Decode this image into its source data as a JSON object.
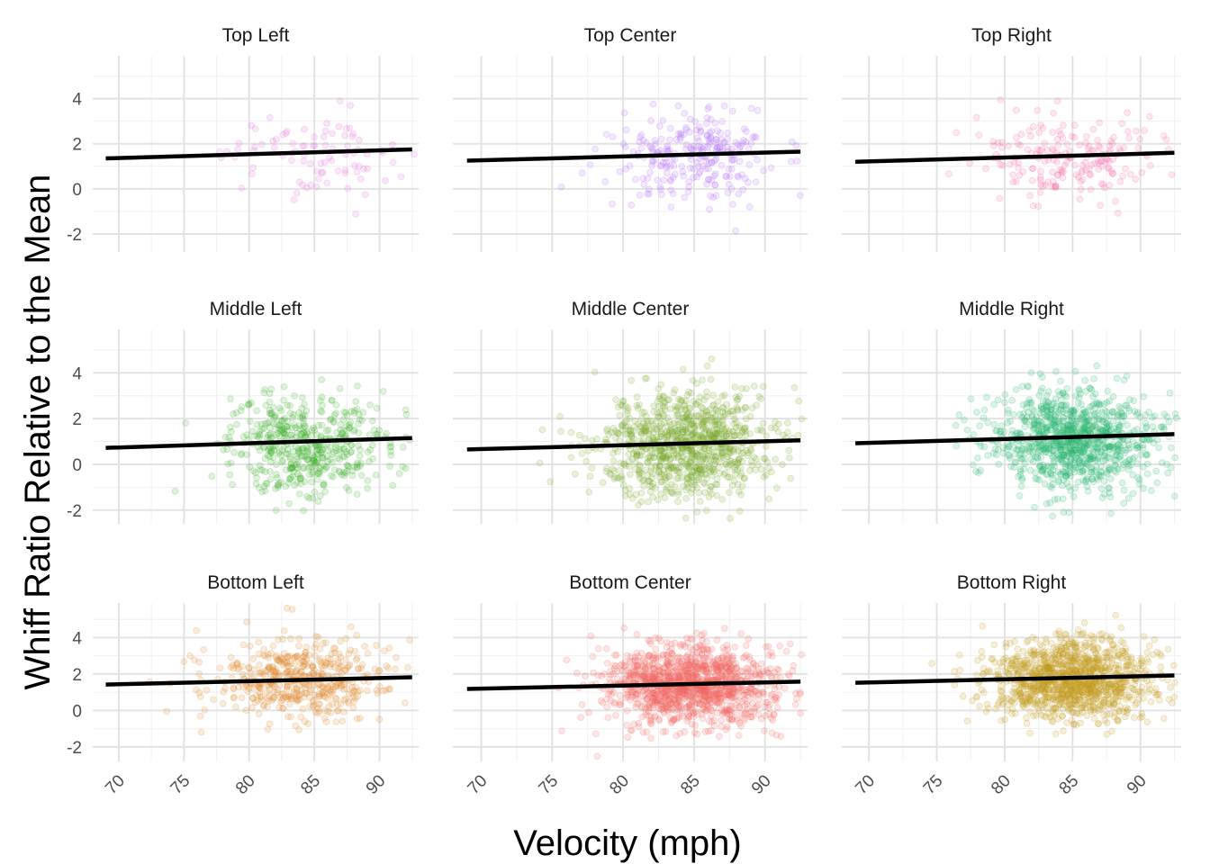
{
  "chart_data": {
    "type": "scatter",
    "title": "",
    "xlabel": "Velocity (mph)",
    "ylabel": "Whiff Ratio Relative to the Mean",
    "xlim": [
      68,
      93
    ],
    "ylim": [
      -2.7,
      5.8
    ],
    "x_ticks": [
      70,
      75,
      80,
      85,
      90
    ],
    "y_ticks": {
      "Top": [
        -2,
        0,
        2,
        4
      ],
      "Middle": [
        -2,
        0,
        2,
        4
      ],
      "Bottom": [
        -2,
        0,
        2,
        4
      ]
    },
    "y_tick_labels": [
      "-2",
      "0",
      "2",
      "4"
    ],
    "x_tick_labels": [
      "70",
      "75",
      "80",
      "85",
      "90"
    ],
    "grid": true,
    "legend": "none",
    "facet_rows": [
      "Top",
      "Middle",
      "Bottom"
    ],
    "facet_cols": [
      "Left",
      "Center",
      "Right"
    ],
    "row_ylim": {
      "Top": [
        -2.8,
        5.9
      ],
      "Middle": [
        -2.6,
        5.9
      ],
      "Bottom": [
        -2.8,
        5.9
      ]
    },
    "panels": [
      {
        "label": "Top Left",
        "row": 0,
        "col": 0,
        "color": "#e36fdb",
        "n": 90,
        "mean_x": 85,
        "sd_x": 3.2,
        "mean_y": 1.5,
        "sd_y": 1.05,
        "fit": {
          "x0": 69,
          "y0": 1.35,
          "x1": 92.5,
          "y1": 1.75
        }
      },
      {
        "label": "Top Center",
        "row": 0,
        "col": 1,
        "color": "#b26ef7",
        "n": 260,
        "mean_x": 85,
        "sd_x": 3.0,
        "mean_y": 1.5,
        "sd_y": 1.0,
        "fit": {
          "x0": 69,
          "y0": 1.25,
          "x1": 92.5,
          "y1": 1.65
        }
      },
      {
        "label": "Top Right",
        "row": 0,
        "col": 2,
        "color": "#f46ba8",
        "n": 200,
        "mean_x": 85,
        "sd_x": 3.2,
        "mean_y": 1.4,
        "sd_y": 1.0,
        "fit": {
          "x0": 69,
          "y0": 1.2,
          "x1": 92.5,
          "y1": 1.6
        }
      },
      {
        "label": "Middle Left",
        "row": 1,
        "col": 0,
        "color": "#3fb12c",
        "n": 500,
        "mean_x": 84.5,
        "sd_x": 3.2,
        "mean_y": 0.9,
        "sd_y": 1.1,
        "fit": {
          "x0": 69,
          "y0": 0.72,
          "x1": 92.5,
          "y1": 1.15
        }
      },
      {
        "label": "Middle Center",
        "row": 1,
        "col": 1,
        "color": "#79a82a",
        "n": 950,
        "mean_x": 84.5,
        "sd_x": 3.0,
        "mean_y": 0.85,
        "sd_y": 1.15,
        "fit": {
          "x0": 69,
          "y0": 0.65,
          "x1": 92.5,
          "y1": 1.05
        }
      },
      {
        "label": "Middle Right",
        "row": 1,
        "col": 2,
        "color": "#27b46d",
        "n": 1000,
        "mean_x": 85,
        "sd_x": 3.0,
        "mean_y": 1.1,
        "sd_y": 1.1,
        "fit": {
          "x0": 69,
          "y0": 0.92,
          "x1": 92.5,
          "y1": 1.32
        }
      },
      {
        "label": "Bottom Left",
        "row": 2,
        "col": 0,
        "color": "#e08a2c",
        "n": 500,
        "mean_x": 84,
        "sd_x": 3.2,
        "mean_y": 1.6,
        "sd_y": 1.05,
        "fit": {
          "x0": 69,
          "y0": 1.42,
          "x1": 92.5,
          "y1": 1.82
        }
      },
      {
        "label": "Bottom Center",
        "row": 2,
        "col": 1,
        "color": "#f26b62",
        "n": 1300,
        "mean_x": 84.5,
        "sd_x": 3.0,
        "mean_y": 1.4,
        "sd_y": 1.05,
        "fit": {
          "x0": 69,
          "y0": 1.18,
          "x1": 92.5,
          "y1": 1.58
        }
      },
      {
        "label": "Bottom Right",
        "row": 2,
        "col": 2,
        "color": "#c29d1c",
        "n": 1200,
        "mean_x": 85,
        "sd_x": 3.0,
        "mean_y": 1.7,
        "sd_y": 1.1,
        "fit": {
          "x0": 69,
          "y0": 1.52,
          "x1": 92.5,
          "y1": 1.92
        }
      }
    ]
  }
}
